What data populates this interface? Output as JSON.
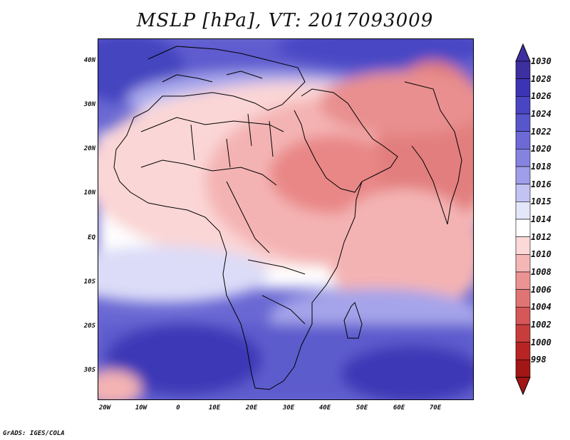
{
  "title": "MSLP [hPa], VT: 2017093009",
  "credit": "GrADS: IGES/COLA",
  "lat_labels": [
    "40N",
    "30N",
    "20N",
    "10N",
    "EQ",
    "10S",
    "20S",
    "30S"
  ],
  "lon_labels": [
    "20W",
    "10W",
    "0",
    "10E",
    "20E",
    "30E",
    "40E",
    "50E",
    "60E",
    "70E"
  ],
  "colorbar": {
    "labels": [
      "1030",
      "1028",
      "1026",
      "1024",
      "1022",
      "1020",
      "1018",
      "1016",
      "1015",
      "1014",
      "1012",
      "1010",
      "1008",
      "1006",
      "1004",
      "1002",
      "1000",
      "998"
    ],
    "colors": [
      "#3d2fa0",
      "#3b34b4",
      "#4a45c3",
      "#5856cb",
      "#6d6ad6",
      "#8683e0",
      "#a09ee8",
      "#c2c3f2",
      "#e4e6fa",
      "#ffffff",
      "#fbd9d9",
      "#f5b6b6",
      "#ec9494",
      "#e07474",
      "#d55757",
      "#c93c3c",
      "#b82424",
      "#a31616"
    ]
  },
  "map_layers": {
    "ocean_colors": {
      "deep": "#3d38b6",
      "mid": "#5d5ccd",
      "light": "#a5a4ea",
      "pale": "#dcdcf8",
      "white": "#ffffff",
      "pink": "#fbd6d6",
      "rose": "#f1aaaa",
      "red": "#e27e7e"
    }
  }
}
